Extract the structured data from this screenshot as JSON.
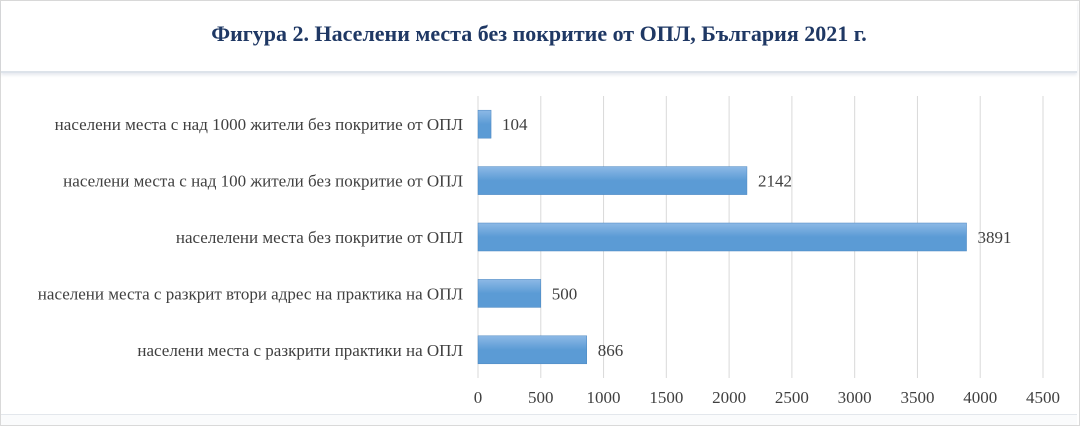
{
  "colors": {
    "bar": "#5b9bd5",
    "bar_light": "#8db9e6",
    "title": "#1f3864",
    "text": "#404040",
    "grid": "#d9d9d9"
  },
  "chart_data": {
    "type": "bar",
    "orientation": "horizontal",
    "title": "Фигура 2. Населени места без покритие от ОПЛ, България 2021 г.",
    "categories": [
      "населени места с над 1000 жители без покритие от ОПЛ",
      "населени места с над 100 жители без покритие от ОПЛ",
      "населелени места без покритие от ОПЛ",
      "населени места с разкрит втори адрес на практика на ОПЛ",
      "населени места с разкрити практики на ОПЛ"
    ],
    "values": [
      104,
      2142,
      3891,
      500,
      866
    ],
    "data_labels": [
      "104",
      "2142",
      "3891",
      "500",
      "866"
    ],
    "x_ticks": [
      0,
      500,
      1000,
      1500,
      2000,
      2500,
      3000,
      3500,
      4000,
      4500
    ],
    "x_tick_labels": [
      "0",
      "500",
      "1000",
      "1500",
      "2000",
      "2500",
      "3000",
      "3500",
      "4000",
      "4500"
    ],
    "xlim": [
      0,
      4500
    ],
    "xlabel": "",
    "ylabel": "",
    "grid": true,
    "legend": "none"
  }
}
